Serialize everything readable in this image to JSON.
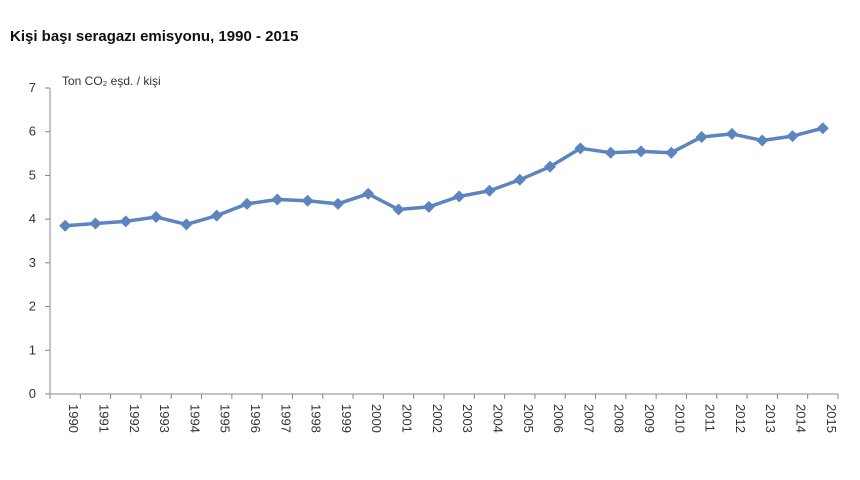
{
  "chart_data": {
    "type": "line",
    "title": "Kişi başı seragazı emisyonu, 1990 - 2015",
    "ylabel": "Ton CO₂ eşd. / kişi",
    "xlabel": "",
    "ylim": [
      0,
      7
    ],
    "yticks": [
      0,
      1,
      2,
      3,
      4,
      5,
      6,
      7
    ],
    "grid": false,
    "legend": "none",
    "colors": {
      "series": "#5b84c0",
      "axis": "#888888"
    },
    "categories": [
      "1990",
      "1991",
      "1992",
      "1993",
      "1994",
      "1995",
      "1996",
      "1997",
      "1998",
      "1999",
      "2000",
      "2001",
      "2002",
      "2003",
      "2004",
      "2005",
      "2006",
      "2007",
      "2008",
      "2009",
      "2010",
      "2011",
      "2012",
      "2013",
      "2014",
      "2015"
    ],
    "series": [
      {
        "values": [
          3.85,
          3.9,
          3.95,
          4.05,
          3.88,
          4.08,
          4.35,
          4.45,
          4.42,
          4.35,
          4.58,
          4.22,
          4.28,
          4.52,
          4.65,
          4.9,
          5.2,
          5.62,
          5.52,
          5.55,
          5.52,
          5.88,
          5.95,
          5.8,
          5.9,
          6.08
        ]
      }
    ]
  }
}
